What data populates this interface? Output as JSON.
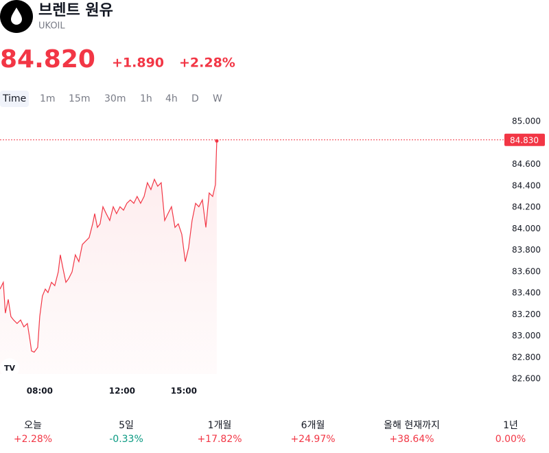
{
  "header": {
    "title": "브렌트 원유",
    "symbol": "UKOIL",
    "price": "84.820",
    "change": "+1.890",
    "change_percent": "+2.28%"
  },
  "tabs": [
    "Time",
    "1m",
    "15m",
    "30m",
    "1h",
    "4h",
    "D",
    "W"
  ],
  "performance": [
    {
      "label": "오늘",
      "value": "+2.28%",
      "color": "#f23645"
    },
    {
      "label": "5일",
      "value": "-0.33%",
      "color": "#089981"
    },
    {
      "label": "1개월",
      "value": "+17.82%",
      "color": "#f23645"
    },
    {
      "label": "6개월",
      "value": "+24.97%",
      "color": "#f23645"
    },
    {
      "label": "올해 현재까지",
      "value": "+38.64%",
      "color": "#f23645"
    },
    {
      "label": "1년",
      "value": "0.00%",
      "color": "#f23645"
    }
  ],
  "chart_data": {
    "type": "line",
    "color": "#f23645",
    "x": [
      6.07,
      6.23,
      6.33,
      6.47,
      6.6,
      6.73,
      6.9,
      7.07,
      7.23,
      7.4,
      7.53,
      7.6,
      7.73,
      7.9,
      8.0,
      8.13,
      8.27,
      8.4,
      8.57,
      8.73,
      8.9,
      9.0,
      9.13,
      9.27,
      9.4,
      9.57,
      9.73,
      9.9,
      10.07,
      10.23,
      10.4,
      10.57,
      10.67,
      10.8,
      10.93,
      11.07,
      11.23,
      11.4,
      11.57,
      11.73,
      11.9,
      12.07,
      12.23,
      12.4,
      12.57,
      12.73,
      12.9,
      13.07,
      13.23,
      13.4,
      13.57,
      13.73,
      13.9,
      14.07,
      14.23,
      14.4,
      14.57,
      14.73,
      14.9,
      15.07,
      15.23,
      15.4,
      15.57,
      15.73,
      15.9,
      16.07,
      16.23,
      16.4,
      16.53,
      16.6
    ],
    "values": [
      83.438,
      83.502,
      83.214,
      83.342,
      83.182,
      83.15,
      83.118,
      83.15,
      83.086,
      83.118,
      82.958,
      82.862,
      82.85,
      82.894,
      83.182,
      83.374,
      83.438,
      83.406,
      83.502,
      83.47,
      83.598,
      83.758,
      83.63,
      83.502,
      83.534,
      83.598,
      83.758,
      83.694,
      83.854,
      83.886,
      83.918,
      84.046,
      84.142,
      84.014,
      84.046,
      84.206,
      84.142,
      84.078,
      84.206,
      84.142,
      84.206,
      84.174,
      84.238,
      84.27,
      84.238,
      84.302,
      84.238,
      84.302,
      84.43,
      84.366,
      84.462,
      84.398,
      84.43,
      84.078,
      84.142,
      84.206,
      84.014,
      84.046,
      83.95,
      83.694,
      83.822,
      84.078,
      84.238,
      84.206,
      84.27,
      84.014,
      84.334,
      84.302,
      84.411,
      84.82
    ],
    "xlim": [
      6.07,
      30.57
    ],
    "xticks": [
      {
        "value": 8,
        "label": "08:00"
      },
      {
        "value": 12,
        "label": "12:00"
      },
      {
        "value": 15,
        "label": "15:00"
      }
    ],
    "ylim": [
      82.55,
      85.11
    ],
    "yticks": [
      {
        "value": 85,
        "label": "85.000"
      },
      {
        "value": 84.6,
        "label": "84.600"
      },
      {
        "value": 84.4,
        "label": "84.400"
      },
      {
        "value": 84.2,
        "label": "84.200"
      },
      {
        "value": 84,
        "label": "84.000"
      },
      {
        "value": 83.8,
        "label": "83.800"
      },
      {
        "value": 83.6,
        "label": "83.600"
      },
      {
        "value": 83.4,
        "label": "83.400"
      },
      {
        "value": 83.2,
        "label": "83.200"
      },
      {
        "value": 83,
        "label": "83.000"
      },
      {
        "value": 82.8,
        "label": "82.800"
      },
      {
        "value": 82.6,
        "label": "82.600"
      }
    ],
    "price_line": {
      "value": 84.83,
      "label": "84.830"
    }
  }
}
